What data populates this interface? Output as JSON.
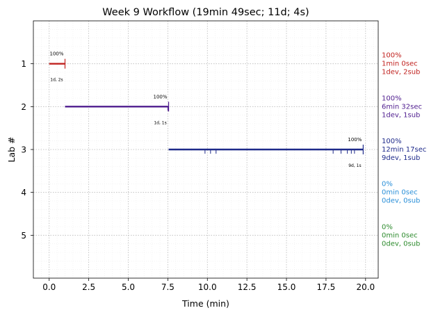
{
  "chart_data": {
    "type": "timeline",
    "title": "Week 9 Workflow (19min 49sec; 11d; 4s)",
    "xlabel": "Time (min)",
    "ylabel": "Lab #",
    "xlim": [
      -1.0,
      20.8
    ],
    "ylim": [
      6,
      0
    ],
    "x_ticks": [
      0.0,
      2.5,
      5.0,
      7.5,
      10.0,
      12.5,
      15.0,
      17.5,
      20.0
    ],
    "x_tick_labels": [
      "0.0",
      "2.5",
      "5.0",
      "7.5",
      "10.0",
      "12.5",
      "15.0",
      "17.5",
      "20.0"
    ],
    "y_ticks": [
      1,
      2,
      3,
      4,
      5
    ],
    "y_tick_labels": [
      "1",
      "2",
      "3",
      "4",
      "5"
    ],
    "grid": true,
    "labs": [
      {
        "lab": 1,
        "color": "#c0221f",
        "start": 0.0,
        "end": 1.0,
        "end_marker": 1.0,
        "ticks": [],
        "pct_label": "100%",
        "count_label": "1d, 2s",
        "summary": [
          "100%",
          "1min 0sec",
          "1dev, 2sub"
        ]
      },
      {
        "lab": 2,
        "color": "#4e1c8e",
        "start": 1.0,
        "end": 7.55,
        "end_marker": 7.55,
        "ticks": [
          7.5
        ],
        "pct_label": "100%",
        "count_label": "1d, 1s",
        "summary": [
          "100%",
          "6min 32sec",
          "1dev, 1sub"
        ]
      },
      {
        "lab": 3,
        "color": "#1e2a8a",
        "start": 7.55,
        "end": 19.85,
        "end_marker": 19.85,
        "ticks": [
          9.85,
          10.2,
          10.55,
          17.95,
          18.45,
          18.85,
          19.1,
          19.3
        ],
        "pct_label": "100%",
        "count_label": "9d, 1s",
        "summary": [
          "100%",
          "12min 17sec",
          "9dev, 1sub"
        ]
      },
      {
        "lab": 4,
        "color": "#2a8fd8",
        "summary": [
          "0%",
          "0min 0sec",
          "0dev, 0sub"
        ]
      },
      {
        "lab": 5,
        "color": "#2e8b2e",
        "summary": [
          "0%",
          "0min 0sec",
          "0dev, 0sub"
        ]
      }
    ]
  }
}
